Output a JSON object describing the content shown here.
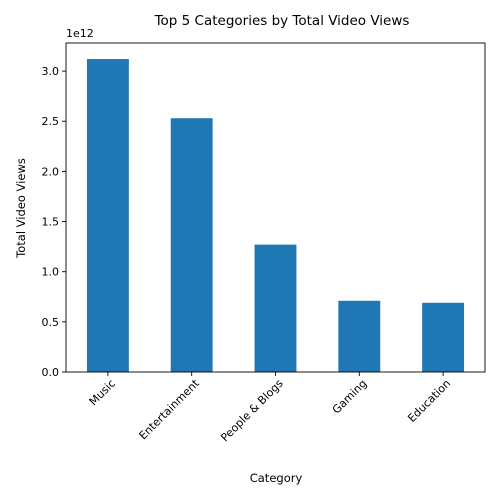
{
  "chart_data": {
    "type": "bar",
    "title": "Top 5 Categories by Total Video Views",
    "xlabel": "Category",
    "ylabel": "Total Video Views",
    "y_offset_label": "1e12",
    "categories": [
      "Music",
      "Entertainment",
      "People & Blogs",
      "Gaming",
      "Education"
    ],
    "values": [
      3120000000000.0,
      2530000000000.0,
      1270000000000.0,
      710000000000.0,
      690000000000.0
    ],
    "ylim": [
      0,
      3280000000000.0
    ],
    "yticks": [
      0,
      500000000000.0,
      1000000000000.0,
      1500000000000.0,
      2000000000000.0,
      2500000000000.0,
      3000000000000.0
    ],
    "ytick_labels": [
      "0.0",
      "0.5",
      "1.0",
      "1.5",
      "2.0",
      "2.5",
      "3.0"
    ],
    "x_tick_rotation": 45,
    "grid": false,
    "legend": "none",
    "bar_color": "#1f77b4"
  }
}
